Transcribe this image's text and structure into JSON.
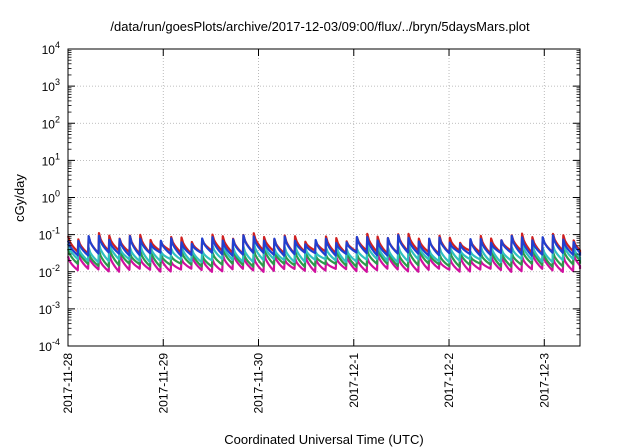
{
  "chart_data": {
    "type": "line",
    "title": "/data/run/goesPlots/archive/2017-12-03/09:00/flux/../bryn/5daysMars.plot",
    "xlabel": "Coordinated Universal Time (UTC)",
    "ylabel": "cGy/day",
    "y_scale": "log",
    "ylim": [
      0.0001,
      10000
    ],
    "xlim": [
      "2017-11-28T00:00",
      "2017-12-03T09:00"
    ],
    "y_ticks": [
      {
        "base": "10",
        "exp": "-4"
      },
      {
        "base": "10",
        "exp": "-3"
      },
      {
        "base": "10",
        "exp": "-2"
      },
      {
        "base": "10",
        "exp": "-1"
      },
      {
        "base": "10",
        "exp": "0"
      },
      {
        "base": "10",
        "exp": "1"
      },
      {
        "base": "10",
        "exp": "2"
      },
      {
        "base": "10",
        "exp": "3"
      },
      {
        "base": "10",
        "exp": "4"
      }
    ],
    "x_ticks": [
      "2017-11-28",
      "2017-11-29",
      "2017-11-30",
      "2017-12-1",
      "2017-12-2",
      "2017-12-3"
    ],
    "grid": true,
    "legend": "none",
    "sawtooth_period_hours": 2.6,
    "series": [
      {
        "color": "#d0109f",
        "peak": 0.026,
        "trough": 0.011
      },
      {
        "color": "#2b9a4a",
        "peak": 0.036,
        "trough": 0.015
      },
      {
        "color": "#30c0c0",
        "peak": 0.048,
        "trough": 0.02
      },
      {
        "color": "#d02020",
        "peak": 0.085,
        "trough": 0.034
      },
      {
        "color": "#2040d0",
        "peak": 0.075,
        "trough": 0.03
      }
    ]
  }
}
